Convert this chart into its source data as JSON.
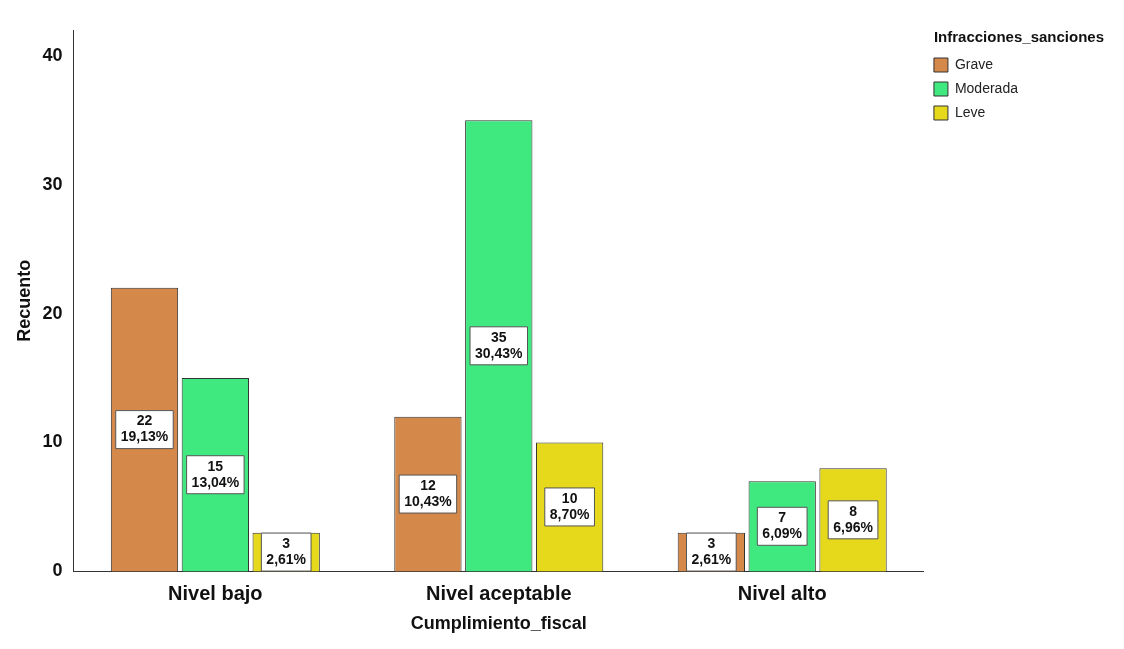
{
  "chart_data": {
    "type": "bar",
    "xlabel": "Cumplimiento_fiscal",
    "ylabel": "Recuento",
    "legend_title": "Infracciones_sanciones",
    "categories": [
      "Nivel bajo",
      "Nivel aceptable",
      "Nivel alto"
    ],
    "series": [
      {
        "name": "Grave",
        "color": "#d4884a",
        "values": [
          22,
          12,
          3
        ],
        "value_labels": [
          "22\n19,13%",
          "12\n10,43%",
          "3\n2,61%"
        ]
      },
      {
        "name": "Moderada",
        "color": "#40e880",
        "values": [
          15,
          35,
          7
        ],
        "value_labels": [
          "15\n13,04%",
          "35\n30,43%",
          "7\n6,09%"
        ]
      },
      {
        "name": "Leve",
        "color": "#e6d81a",
        "values": [
          3,
          10,
          8
        ],
        "value_labels": [
          "3\n2,61%",
          "10\n8,70%",
          "8\n6,96%"
        ]
      }
    ],
    "ylim": [
      0,
      42
    ],
    "yticks": [
      0,
      10,
      20,
      30,
      40
    ],
    "grid": false,
    "legend": "top right"
  }
}
